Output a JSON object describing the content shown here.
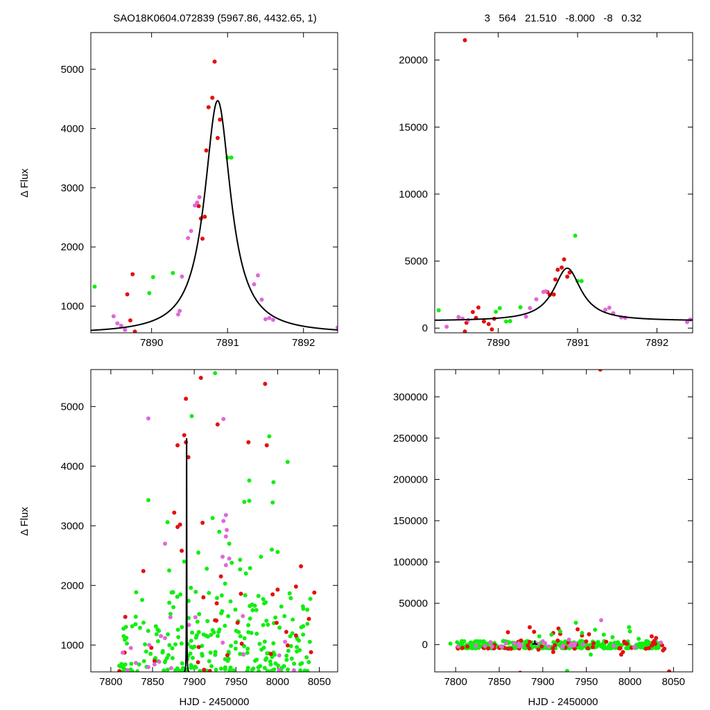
{
  "figure": {
    "header_left": "SAO18K0604.072839 (5967.86, 4432.65,    1)",
    "header_right": "3   564   21.510   -8.000   -8   0.32",
    "ylabel": "Δ Flux",
    "xlabel": "HJD - 2450000"
  },
  "colors": {
    "red": "#e41010",
    "green": "#11ee11",
    "magenta": "#e068d8",
    "model": "#000000"
  },
  "chart_data": [
    {
      "type": "scatter",
      "title": "",
      "xlabel": "",
      "ylabel": "Δ Flux",
      "xlim": [
        7889.2,
        7892.45
      ],
      "ylim": [
        550,
        5620
      ],
      "xticks": [
        7890,
        7891,
        7892
      ],
      "yticks": [
        1000,
        2000,
        3000,
        4000,
        5000
      ],
      "model": {
        "type": "lorentzian",
        "t0": 7890.87,
        "peak": 4470,
        "baseline": 530,
        "width": 0.21
      },
      "series": [
        {
          "color": "red",
          "points": [
            [
              7889.68,
              1200
            ],
            [
              7889.72,
              760
            ],
            [
              7889.75,
              1540
            ],
            [
              7889.78,
              570
            ],
            [
              7890.65,
              2480
            ],
            [
              7890.67,
              2140
            ],
            [
              7890.7,
              2510
            ],
            [
              7890.72,
              3630
            ],
            [
              7890.75,
              4360
            ],
            [
              7890.8,
              4520
            ],
            [
              7890.83,
              5130
            ],
            [
              7890.87,
              3840
            ],
            [
              7890.9,
              4150
            ],
            [
              7890.62,
              2690
            ]
          ]
        },
        {
          "color": "green",
          "points": [
            [
              7889.25,
              1330
            ],
            [
              7889.97,
              1220
            ],
            [
              7890.02,
              1490
            ],
            [
              7890.28,
              1560
            ],
            [
              7891.0,
              3510
            ],
            [
              7891.05,
              3510
            ]
          ]
        },
        {
          "color": "magenta",
          "points": [
            [
              7889.5,
              830
            ],
            [
              7889.55,
              710
            ],
            [
              7889.6,
              670
            ],
            [
              7889.65,
              600
            ],
            [
              7890.35,
              860
            ],
            [
              7890.37,
              920
            ],
            [
              7890.4,
              1500
            ],
            [
              7890.48,
              2150
            ],
            [
              7890.52,
              2270
            ],
            [
              7890.57,
              2700
            ],
            [
              7890.6,
              2750
            ],
            [
              7890.63,
              2840
            ],
            [
              7891.35,
              1370
            ],
            [
              7891.4,
              1520
            ],
            [
              7891.45,
              1110
            ],
            [
              7891.5,
              780
            ],
            [
              7891.55,
              800
            ],
            [
              7891.6,
              770
            ],
            [
              7892.45,
              640
            ]
          ]
        }
      ]
    },
    {
      "type": "scatter",
      "title": "",
      "xlabel": "",
      "ylabel": "",
      "xlim": [
        7889.2,
        7892.45
      ],
      "ylim": [
        -350,
        22050
      ],
      "xticks": [
        7890,
        7891,
        7892
      ],
      "yticks": [
        0,
        5000,
        10000,
        15000,
        20000
      ],
      "model": {
        "type": "lorentzian",
        "t0": 7890.87,
        "peak": 4470,
        "baseline": 530,
        "width": 0.21
      },
      "series": [
        {
          "color": "red",
          "points": [
            [
              7889.58,
              21480
            ],
            [
              7889.6,
              400
            ],
            [
              7889.58,
              -250
            ],
            [
              7889.68,
              1200
            ],
            [
              7889.75,
              1540
            ],
            [
              7889.72,
              760
            ],
            [
              7889.82,
              500
            ],
            [
              7889.88,
              300
            ],
            [
              7889.92,
              -100
            ],
            [
              7889.95,
              700
            ],
            [
              7890.65,
              2480
            ],
            [
              7890.7,
              2510
            ],
            [
              7890.72,
              3630
            ],
            [
              7890.75,
              4360
            ],
            [
              7890.8,
              4520
            ],
            [
              7890.83,
              5130
            ],
            [
              7890.87,
              3840
            ],
            [
              7890.9,
              4150
            ],
            [
              7890.62,
              2690
            ]
          ]
        },
        {
          "color": "green",
          "points": [
            [
              7889.25,
              1330
            ],
            [
              7889.97,
              1220
            ],
            [
              7890.02,
              1490
            ],
            [
              7890.1,
              500
            ],
            [
              7890.15,
              520
            ],
            [
              7890.28,
              1560
            ],
            [
              7890.97,
              6900
            ],
            [
              7891.0,
              3510
            ],
            [
              7891.05,
              3510
            ]
          ]
        },
        {
          "color": "magenta",
          "points": [
            [
              7889.35,
              100
            ],
            [
              7889.5,
              830
            ],
            [
              7889.55,
              710
            ],
            [
              7889.62,
              600
            ],
            [
              7890.35,
              860
            ],
            [
              7890.4,
              1500
            ],
            [
              7890.48,
              2150
            ],
            [
              7890.57,
              2700
            ],
            [
              7890.6,
              2750
            ],
            [
              7891.35,
              1370
            ],
            [
              7891.4,
              1520
            ],
            [
              7891.45,
              1110
            ],
            [
              7891.55,
              800
            ],
            [
              7891.6,
              770
            ],
            [
              7892.38,
              450
            ],
            [
              7892.42,
              640
            ]
          ]
        }
      ]
    },
    {
      "type": "scatter",
      "title": "",
      "xlabel": "HJD - 2450000",
      "ylabel": "Δ Flux",
      "xlim": [
        7776,
        8072
      ],
      "ylim": [
        550,
        5620
      ],
      "xticks": [
        7800,
        7850,
        7900,
        7950,
        8000,
        8050
      ],
      "yticks": [
        1000,
        2000,
        3000,
        4000,
        5000
      ],
      "model": {
        "type": "lorentzian",
        "t0": 7890.87,
        "peak": 4470,
        "baseline": 530,
        "width": 0.21
      },
      "scatter_seed": 11,
      "series": [
        {
          "color": "red",
          "points": [
            [
              7908,
              5480
            ],
            [
              7928,
              4700
            ],
            [
              7965,
              4400
            ],
            [
              7985,
              5380
            ],
            [
              7987,
              4350
            ],
            [
              7890,
              5130
            ],
            [
              7888,
              4520
            ],
            [
              7890,
              4400
            ],
            [
              7893,
              4150
            ],
            [
              7880,
              4350
            ],
            [
              7876,
              3220
            ],
            [
              7839,
              2240
            ],
            [
              7880,
              2980
            ],
            [
              7885,
              2580
            ],
            [
              7883,
              3020
            ],
            [
              7910,
              3050
            ],
            [
              7932,
              2150
            ],
            [
              7956,
              1860
            ],
            [
              8000,
              1930
            ],
            [
              8022,
              1980
            ],
            [
              8028,
              2320
            ],
            [
              8044,
              1880
            ],
            [
              7911,
              1800
            ],
            [
              7994,
              1850
            ],
            [
              7927,
              1700
            ],
            [
              8022,
              1160
            ],
            [
              7992,
              850
            ],
            [
              8040,
              880
            ]
          ]
        },
        {
          "color": "green",
          "points": [
            [
              7925,
              5560
            ],
            [
              7897,
              4840
            ],
            [
              8012,
              4070
            ],
            [
              7990,
              4500
            ],
            [
              7966,
              3760
            ],
            [
              7995,
              3730
            ],
            [
              7845,
              3430
            ],
            [
              7960,
              3400
            ],
            [
              7966,
              3420
            ],
            [
              7994,
              3390
            ],
            [
              7868,
              3060
            ],
            [
              7922,
              3130
            ],
            [
              7930,
              2900
            ],
            [
              7942,
              2700
            ],
            [
              7955,
              2430
            ],
            [
              7955,
              2270
            ],
            [
              7967,
              2290
            ],
            [
              7962,
              2200
            ],
            [
              7980,
              2480
            ],
            [
              7993,
              2600
            ],
            [
              8000,
              2560
            ],
            [
              7915,
              2280
            ],
            [
              7905,
              2550
            ],
            [
              7888,
              2400
            ],
            [
              7937,
              2030
            ],
            [
              7870,
              2250
            ],
            [
              7896,
              1960
            ],
            [
              7945,
              2380
            ]
          ]
        },
        {
          "color": "magenta",
          "points": [
            [
              7845,
              4800
            ],
            [
              7935,
              4790
            ],
            [
              7938,
              3180
            ],
            [
              7935,
              3080
            ],
            [
              7939,
              2930
            ],
            [
              7934,
              2480
            ],
            [
              7938,
              2340
            ],
            [
              7865,
              2700
            ],
            [
              7846,
              1000
            ],
            [
              7824,
              950
            ],
            [
              7830,
              700
            ],
            [
              7858,
              720
            ],
            [
              7860,
              1150
            ],
            [
              7845,
              630
            ],
            [
              7820,
              580
            ],
            [
              7938,
              2820
            ],
            [
              7942,
              2450
            ]
          ]
        }
      ],
      "scatter_bulk": [
        {
          "color": "green",
          "count": 240,
          "x": [
            7810,
            8040
          ],
          "y": [
            560,
            1900
          ]
        },
        {
          "color": "red",
          "count": 18,
          "x": [
            7800,
            8040
          ],
          "y": [
            560,
            1500
          ]
        },
        {
          "color": "magenta",
          "count": 14,
          "x": [
            7810,
            8030
          ],
          "y": [
            560,
            1500
          ]
        }
      ]
    },
    {
      "type": "scatter",
      "title": "",
      "xlabel": "HJD - 2450000",
      "ylabel": "",
      "xlim": [
        7776,
        8072
      ],
      "ylim": [
        -33000,
        333000
      ],
      "xticks": [
        7800,
        7850,
        7900,
        7950,
        8000,
        8050
      ],
      "yticks": [
        0,
        50000,
        100000,
        150000,
        200000,
        250000,
        300000
      ],
      "model": {
        "type": "lorentzian",
        "t0": 7890.87,
        "peak": 4470,
        "baseline": 530,
        "width": 0.21
      },
      "scatter_seed": 29,
      "series": [
        {
          "color": "red",
          "points": [
            [
              7966,
              333000
            ],
            [
              8045,
              -32500
            ],
            [
              7874,
              -34000
            ],
            [
              7885,
              21000
            ],
            [
              7890,
              15500
            ],
            [
              7918,
              19500
            ],
            [
              7912,
              14000
            ],
            [
              7940,
              18500
            ],
            [
              7953,
              12500
            ],
            [
              7920,
              13000
            ],
            [
              7945,
              11000
            ],
            [
              7990,
              -12000
            ],
            [
              7992,
              -9000
            ],
            [
              7860,
              15000
            ],
            [
              8025,
              10000
            ],
            [
              8030,
              8000
            ],
            [
              8038,
              -7000
            ],
            [
              7895,
              -6000
            ],
            [
              7912,
              -9000
            ],
            [
              7875,
              5000
            ],
            [
              7850,
              -4000
            ]
          ]
        },
        {
          "color": "green",
          "points": [
            [
              7928,
              -32000
            ],
            [
              7938,
              26500
            ],
            [
              7999,
              21000
            ],
            [
              8000,
              16000
            ],
            [
              7910,
              12000
            ],
            [
              7920,
              16000
            ],
            [
              7960,
              18000
            ],
            [
              7896,
              10000
            ],
            [
              7794,
              1200
            ],
            [
              7805,
              800
            ],
            [
              7945,
              14000
            ],
            [
              7970,
              12000
            ],
            [
              7980,
              9000
            ],
            [
              8010,
              7000
            ],
            [
              7955,
              -12000
            ]
          ]
        },
        {
          "color": "magenta",
          "points": [
            [
              7967,
              29500
            ],
            [
              7840,
              3000
            ],
            [
              7900,
              4000
            ],
            [
              8005,
              -3000
            ],
            [
              7930,
              6000
            ],
            [
              7852,
              -2000
            ]
          ]
        }
      ],
      "scatter_bulk": [
        {
          "color": "green",
          "count": 320,
          "x": [
            7800,
            8040
          ],
          "y": [
            -4500,
            4500
          ]
        },
        {
          "color": "red",
          "count": 45,
          "x": [
            7800,
            8045
          ],
          "y": [
            -5000,
            5000
          ]
        },
        {
          "color": "magenta",
          "count": 24,
          "x": [
            7800,
            8040
          ],
          "y": [
            -3000,
            3000
          ]
        }
      ]
    }
  ]
}
